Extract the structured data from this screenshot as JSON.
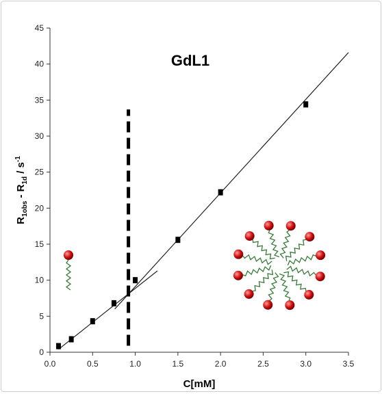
{
  "chart_data": {
    "type": "scatter",
    "title": "GdL1",
    "x_label": "C[mM]",
    "y_label": [
      "R",
      "1obs",
      " - R",
      "1d",
      " / s",
      "-1"
    ],
    "x": [
      0.1,
      0.25,
      0.5,
      0.75,
      1.0,
      1.5,
      2.0,
      3.0
    ],
    "values": [
      0.85,
      1.8,
      4.3,
      6.8,
      10.0,
      15.6,
      22.2,
      34.4
    ],
    "color": "#000000",
    "fit_lines": [
      {
        "x": [
          0.1,
          1.26
        ],
        "y": [
          0.4,
          11.3
        ]
      },
      {
        "x": [
          0.76,
          3.5
        ],
        "y": [
          6.0,
          41.6
        ]
      }
    ],
    "threshold": {
      "x": 0.92,
      "y": [
        0.9,
        33.7
      ]
    },
    "xlim": [
      0,
      3.5
    ],
    "ylim": [
      0,
      45
    ],
    "xticks": [
      {
        "value": 0,
        "label": "0.0"
      },
      {
        "value": 0.5,
        "label": "0.5"
      },
      {
        "value": 1,
        "label": "1.0"
      },
      {
        "value": 1.5,
        "label": "1.5"
      },
      {
        "value": 2,
        "label": "2.0"
      },
      {
        "value": 2.5,
        "label": "2.5"
      },
      {
        "value": 3,
        "label": "3.0"
      },
      {
        "value": 3.5,
        "label": "3.5"
      }
    ],
    "yticks": [
      0,
      5,
      10,
      15,
      20,
      25,
      30,
      35,
      40,
      45
    ]
  }
}
